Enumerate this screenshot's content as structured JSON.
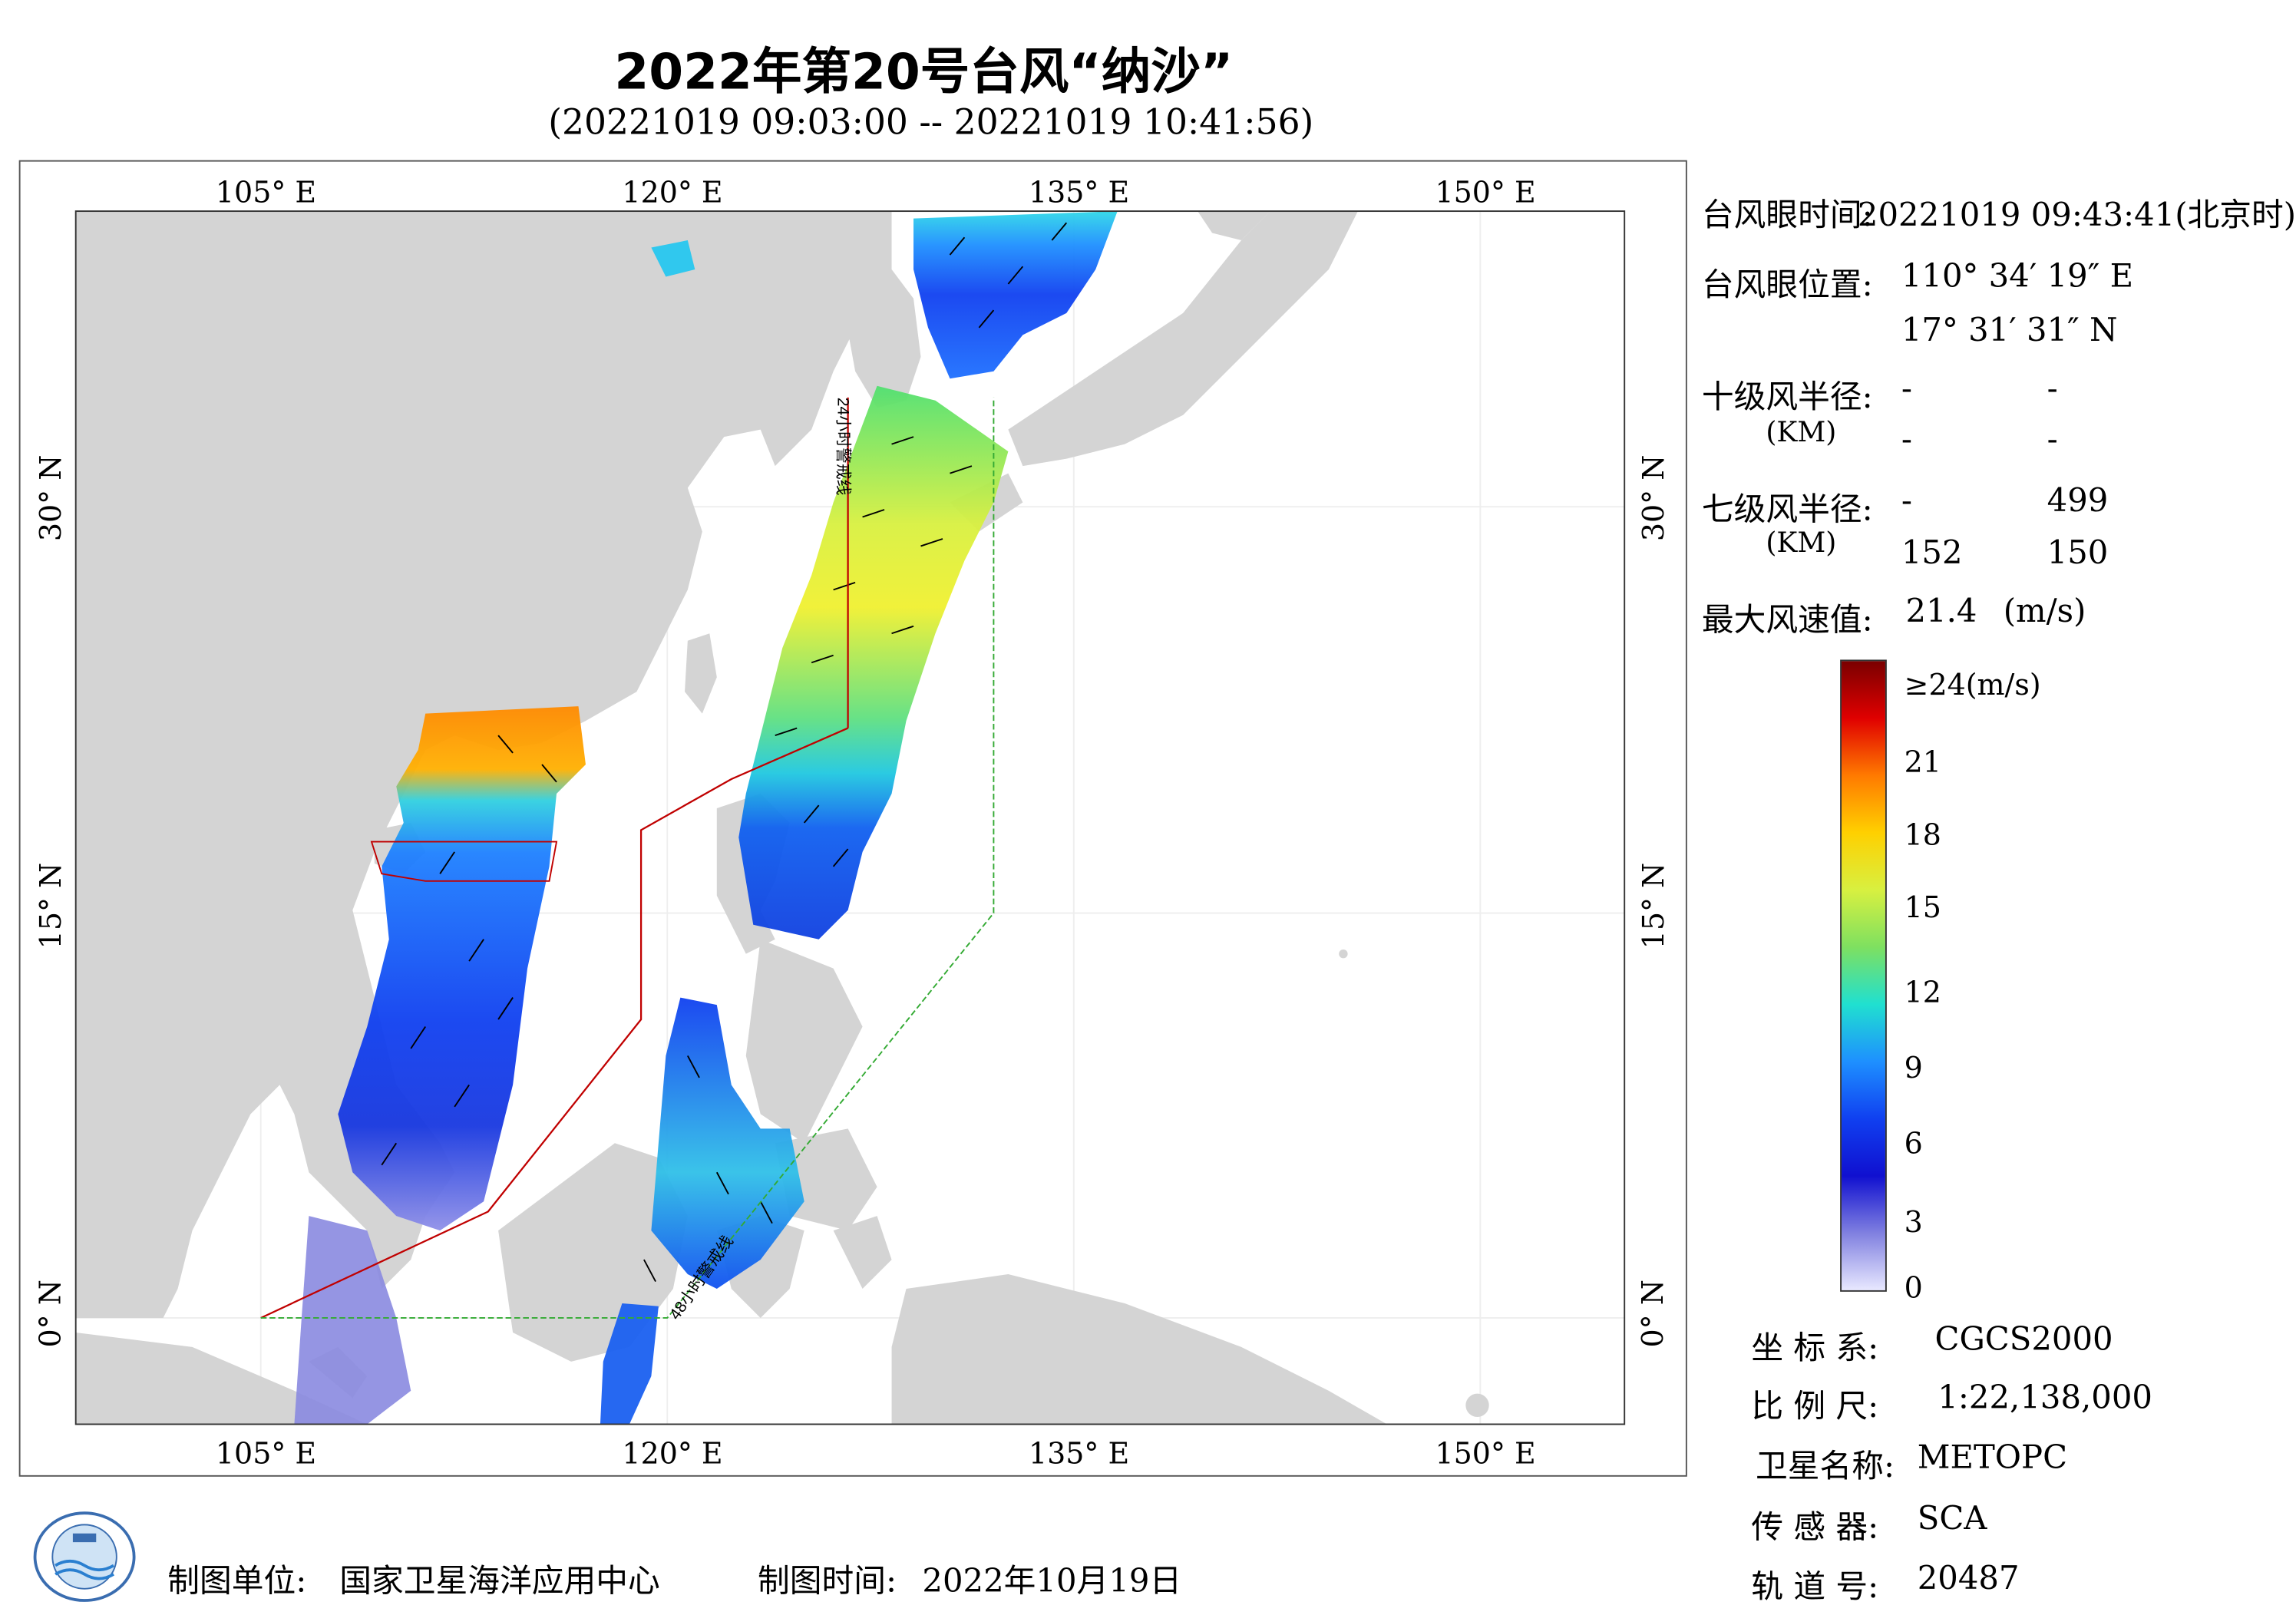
{
  "title": "2022年第20号台风“纳沙”",
  "subtitle": "(20221019 09:03:00 -- 20221019 10:41:56)",
  "map": {
    "lon_ticks": [
      "105° E",
      "120° E",
      "135° E",
      "150° E"
    ],
    "lat_ticks": [
      "30° N",
      "15° N",
      "0° N"
    ],
    "labels": {
      "warn24": "24小时警戒线",
      "warn48": "48小时警戒线"
    },
    "colors": {
      "land": "#d4d4d4",
      "ocean": "#ffffff",
      "warn24": "#c00000",
      "warn48": "#33aa33"
    }
  },
  "info": {
    "eye_time_label": "台风眼时间:",
    "eye_time_value": "20221019 09:43:41(北京时)",
    "eye_pos_label": "台风眼位置:",
    "eye_lon": "110° 34′ 19″ E",
    "eye_lat": "17° 31′ 31″ N",
    "r10_label": "十级风半径:",
    "r10_unit": "(KM)",
    "r10_values": [
      "-",
      "-",
      "-",
      "-"
    ],
    "r7_label": "七级风半径:",
    "r7_unit": "(KM)",
    "r7_values": [
      "-",
      "499",
      "152",
      "150"
    ],
    "maxwind_label": "最大风速值:",
    "maxwind_value": "21.4",
    "maxwind_unit": "(m/s)"
  },
  "colorbar": {
    "labels": [
      "≥24(m/s)",
      "21",
      "18",
      "15",
      "12",
      "9",
      "6",
      "3",
      "0"
    ],
    "stops": [
      "#7a0000",
      "#e00000",
      "#ff7a00",
      "#ffd000",
      "#d8f040",
      "#7ee060",
      "#20e0d0",
      "#1e90ff",
      "#1040f0",
      "#1010d0",
      "#8080e0",
      "#e8e8ff"
    ]
  },
  "meta": {
    "crs_label": "坐 标 系:",
    "crs_value": "CGCS2000",
    "scale_label": "比 例 尺:",
    "scale_value": "1:22,138,000",
    "sat_label": "卫星名称:",
    "sat_value": "METOPC",
    "sensor_label": "传 感 器:",
    "sensor_value": "SCA",
    "orbit_label": "轨 道 号:",
    "orbit_value": "20487"
  },
  "footer": {
    "unit_label": "制图单位:",
    "unit_value": "国家卫星海洋应用中心",
    "time_label": "制图时间:",
    "time_value": "2022年10月19日"
  }
}
